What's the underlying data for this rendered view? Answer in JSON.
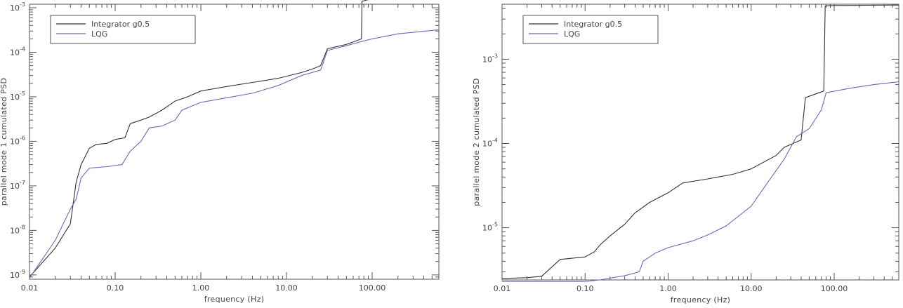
{
  "chart_data": [
    {
      "type": "line",
      "xlabel": "frequency (Hz)",
      "ylabel": "parallel mode 1 cumulated PSD",
      "xscale": "log",
      "yscale": "log",
      "xlim": [
        0.01,
        600
      ],
      "ylim": [
        8e-10,
        0.0012
      ],
      "xticks": [
        {
          "v": 0.01,
          "label": "0.01"
        },
        {
          "v": 0.1,
          "label": "0.10"
        },
        {
          "v": 1,
          "label": "1.00"
        },
        {
          "v": 10,
          "label": "10.00"
        },
        {
          "v": 100,
          "label": "100.00"
        }
      ],
      "yticks": [
        {
          "v": 1e-09,
          "base": "10",
          "exp": "-9"
        },
        {
          "v": 1e-08,
          "base": "10",
          "exp": "-8"
        },
        {
          "v": 1e-07,
          "base": "10",
          "exp": "-7"
        },
        {
          "v": 1e-06,
          "base": "10",
          "exp": "-6"
        },
        {
          "v": 1e-05,
          "base": "10",
          "exp": "-5"
        },
        {
          "v": 0.0001,
          "base": "10",
          "exp": "-4"
        },
        {
          "v": 0.001,
          "base": "10",
          "exp": "-3"
        }
      ],
      "legend": {
        "position": "top-left"
      },
      "series": [
        {
          "name": "Integrator g0.5",
          "color": "#333333",
          "points": [
            [
              0.01,
              9e-10
            ],
            [
              0.02,
              4e-09
            ],
            [
              0.03,
              1.4e-08
            ],
            [
              0.035,
              1.2e-07
            ],
            [
              0.04,
              3e-07
            ],
            [
              0.05,
              7e-07
            ],
            [
              0.06,
              8.5e-07
            ],
            [
              0.08,
              9e-07
            ],
            [
              0.1,
              1.1e-06
            ],
            [
              0.13,
              1.2e-06
            ],
            [
              0.15,
              2.5e-06
            ],
            [
              0.2,
              3e-06
            ],
            [
              0.25,
              3.5e-06
            ],
            [
              0.35,
              5e-06
            ],
            [
              0.5,
              8e-06
            ],
            [
              0.7,
              1e-05
            ],
            [
              1,
              1.35e-05
            ],
            [
              2,
              1.7e-05
            ],
            [
              4,
              2.1e-05
            ],
            [
              8,
              2.6e-05
            ],
            [
              15,
              3.5e-05
            ],
            [
              20,
              4.2e-05
            ],
            [
              25,
              5e-05
            ],
            [
              30,
              0.00012
            ],
            [
              50,
              0.00015
            ],
            [
              75,
              0.0002
            ],
            [
              76,
              0.0014
            ],
            [
              100,
              0.0016
            ],
            [
              200,
              0.0017
            ],
            [
              600,
              0.0017
            ]
          ]
        },
        {
          "name": "LQG",
          "color": "#6a6ab8",
          "points": [
            [
              0.01,
              8.5e-10
            ],
            [
              0.02,
              6e-09
            ],
            [
              0.03,
              3e-08
            ],
            [
              0.035,
              5e-08
            ],
            [
              0.04,
              1.5e-07
            ],
            [
              0.05,
              2.5e-07
            ],
            [
              0.08,
              2.7e-07
            ],
            [
              0.12,
              3e-07
            ],
            [
              0.15,
              6e-07
            ],
            [
              0.2,
              1e-06
            ],
            [
              0.25,
              2e-06
            ],
            [
              0.35,
              2.2e-06
            ],
            [
              0.5,
              3e-06
            ],
            [
              0.6,
              5e-06
            ],
            [
              1,
              7.5e-06
            ],
            [
              2,
              9.5e-06
            ],
            [
              4,
              1.2e-05
            ],
            [
              8,
              1.8e-05
            ],
            [
              15,
              3e-05
            ],
            [
              25,
              4e-05
            ],
            [
              30,
              0.00011
            ],
            [
              50,
              0.00014
            ],
            [
              80,
              0.00018
            ],
            [
              100,
              0.0002
            ],
            [
              200,
              0.00026
            ],
            [
              600,
              0.00032
            ]
          ]
        }
      ]
    },
    {
      "type": "line",
      "xlabel": "frequency (Hz)",
      "ylabel": "parallel mode 2 cumulated PSD",
      "xscale": "log",
      "yscale": "log",
      "xlim": [
        0.01,
        600
      ],
      "ylim": [
        2.4e-06,
        0.0045
      ],
      "xticks": [
        {
          "v": 0.01,
          "label": "0.01"
        },
        {
          "v": 0.1,
          "label": "0.10"
        },
        {
          "v": 1,
          "label": "1.00"
        },
        {
          "v": 10,
          "label": "10.00"
        },
        {
          "v": 100,
          "label": "100.00"
        }
      ],
      "yticks": [
        {
          "v": 1e-05,
          "base": "10",
          "exp": "-5"
        },
        {
          "v": 0.0001,
          "base": "10",
          "exp": "-4"
        },
        {
          "v": 0.001,
          "base": "10",
          "exp": "-3"
        }
      ],
      "legend": {
        "position": "top-left"
      },
      "series": [
        {
          "name": "Integrator g0.5",
          "color": "#333333",
          "points": [
            [
              0.01,
              2.5e-06
            ],
            [
              0.02,
              2.55e-06
            ],
            [
              0.03,
              2.65e-06
            ],
            [
              0.05,
              4.2e-06
            ],
            [
              0.1,
              4.5e-06
            ],
            [
              0.13,
              5.2e-06
            ],
            [
              0.15,
              6.2e-06
            ],
            [
              0.2,
              8e-06
            ],
            [
              0.3,
              1.1e-05
            ],
            [
              0.4,
              1.5e-05
            ],
            [
              0.6,
              2e-05
            ],
            [
              1,
              2.6e-05
            ],
            [
              1.5,
              3.4e-05
            ],
            [
              3,
              3.8e-05
            ],
            [
              6,
              4.3e-05
            ],
            [
              10,
              5e-05
            ],
            [
              20,
              7.2e-05
            ],
            [
              25,
              9e-05
            ],
            [
              40,
              0.00011
            ],
            [
              45,
              0.00035
            ],
            [
              75,
              0.00042
            ],
            [
              78,
              0.0043
            ],
            [
              100,
              0.00435
            ],
            [
              600,
              0.0044
            ]
          ]
        },
        {
          "name": "LQG",
          "color": "#6a6ab8",
          "points": [
            [
              0.01,
              2.3e-06
            ],
            [
              0.1,
              2.3e-06
            ],
            [
              0.15,
              2.4e-06
            ],
            [
              0.3,
              2.7e-06
            ],
            [
              0.45,
              3e-06
            ],
            [
              0.5,
              4e-06
            ],
            [
              0.7,
              5e-06
            ],
            [
              1,
              5.8e-06
            ],
            [
              2,
              7e-06
            ],
            [
              3,
              8.2e-06
            ],
            [
              5,
              1.05e-05
            ],
            [
              10,
              1.8e-05
            ],
            [
              15,
              3.2e-05
            ],
            [
              25,
              6.5e-05
            ],
            [
              35,
              0.00012
            ],
            [
              50,
              0.00015
            ],
            [
              70,
              0.00025
            ],
            [
              80,
              0.0004
            ],
            [
              150,
              0.00045
            ],
            [
              300,
              0.0005
            ],
            [
              600,
              0.00054
            ]
          ]
        }
      ]
    }
  ]
}
